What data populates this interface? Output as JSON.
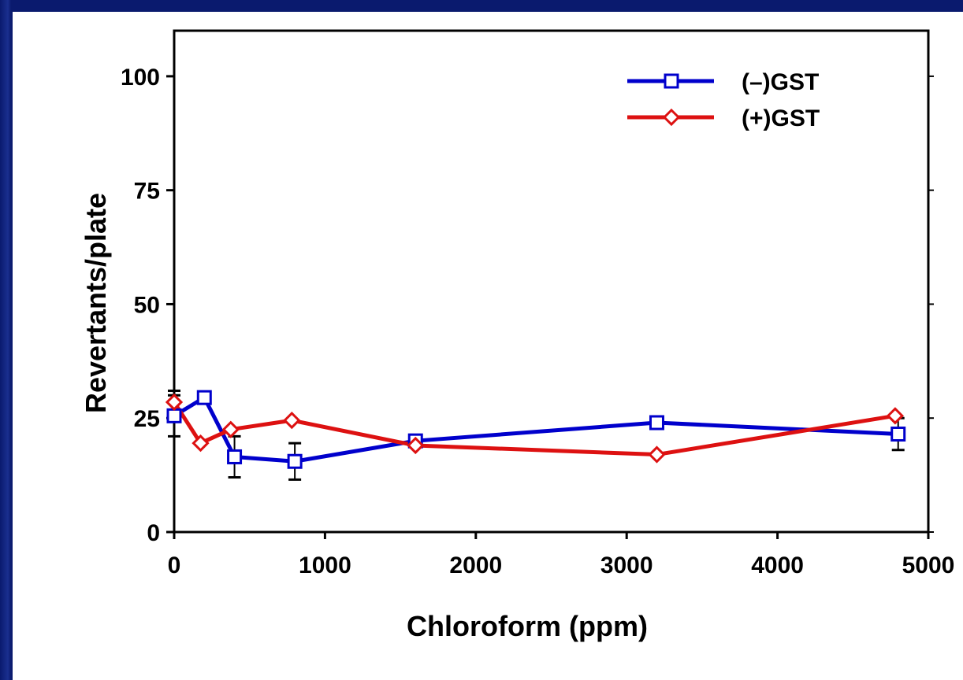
{
  "chart_data": {
    "type": "line",
    "xlabel": "Chloroform (ppm)",
    "ylabel": "Revertants/plate",
    "xlim": [
      0,
      5000
    ],
    "ylim": [
      0,
      110
    ],
    "xticks": [
      0,
      1000,
      2000,
      3000,
      4000,
      5000
    ],
    "yticks": [
      0,
      25,
      50,
      75,
      100
    ],
    "xtick_labels": [
      "0",
      "1000",
      "2000",
      "3000",
      "4000",
      "5000"
    ],
    "ytick_labels": [
      "0",
      "25",
      "50",
      "75",
      "100"
    ],
    "grid": false,
    "legend_position": "top-right",
    "series": [
      {
        "name": "(–)GST",
        "color": "#0000cc",
        "marker": "square",
        "x": [
          0,
          200,
          400,
          800,
          1600,
          3200,
          4800
        ],
        "y": [
          25.5,
          29.5,
          16.5,
          15.5,
          20,
          24,
          21.5
        ],
        "err": [
          4.5,
          0,
          4.5,
          4,
          0,
          0,
          3.5
        ]
      },
      {
        "name": "(+)GST",
        "color": "#dd1111",
        "marker": "diamond",
        "x": [
          0,
          175,
          375,
          780,
          1600,
          3200,
          4780
        ],
        "y": [
          28.5,
          19.5,
          22.5,
          24.5,
          19,
          17,
          25.5
        ],
        "err": [
          2.5,
          0,
          0,
          0,
          0,
          0,
          0
        ]
      }
    ]
  }
}
